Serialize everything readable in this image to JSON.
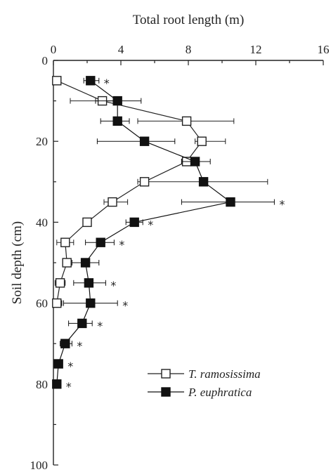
{
  "chart_data": {
    "type": "line",
    "title": "",
    "xlabel": "Total root length (m)",
    "ylabel": "Soil depth (cm)",
    "xlim": [
      0,
      16
    ],
    "ylim": [
      0,
      100
    ],
    "x_axis_position": "top",
    "y_axis_inverted": true,
    "x_ticks": [
      0,
      4,
      8,
      12,
      16
    ],
    "y_ticks": [
      0,
      20,
      40,
      60,
      80,
      100
    ],
    "grid": false,
    "legend_position": "bottom-right",
    "significance_marker": "*",
    "series": [
      {
        "name": "T. ramosissima",
        "marker": "open-square",
        "color": "#222222",
        "depth": [
          5,
          10,
          15,
          20,
          25,
          30,
          35,
          40,
          45,
          50,
          55,
          60
        ],
        "length": [
          0.2,
          2.9,
          7.9,
          8.8,
          7.9,
          5.4,
          3.5,
          2.0,
          0.7,
          0.8,
          0.4,
          0.2
        ],
        "err_low": [
          0.2,
          1.0,
          5.0,
          8.4,
          7.6,
          5.0,
          3.0,
          2.0,
          0.2,
          0.6,
          0.1,
          0.0
        ],
        "err_high": [
          0.2,
          3.7,
          10.7,
          10.2,
          8.2,
          12.7,
          4.4,
          2.0,
          1.2,
          1.0,
          0.7,
          0.5
        ]
      },
      {
        "name": "P. euphratica",
        "marker": "filled-square",
        "color": "#111111",
        "depth": [
          5,
          10,
          15,
          20,
          25,
          30,
          35,
          40,
          45,
          50,
          55,
          60,
          65,
          70,
          75,
          80
        ],
        "length": [
          2.2,
          3.8,
          3.8,
          5.4,
          8.4,
          8.9,
          10.5,
          4.8,
          2.8,
          1.9,
          2.1,
          2.2,
          1.7,
          0.7,
          0.3,
          0.2
        ],
        "err_low": [
          1.8,
          2.5,
          2.8,
          2.6,
          7.6,
          8.9,
          7.6,
          4.3,
          1.9,
          1.1,
          1.2,
          0.6,
          0.9,
          0.4,
          0.2,
          0.1
        ],
        "err_high": [
          2.7,
          5.2,
          4.5,
          7.2,
          9.3,
          8.9,
          13.1,
          5.3,
          3.6,
          2.7,
          3.1,
          3.8,
          2.3,
          1.1,
          0.4,
          0.3
        ],
        "significant": [
          true,
          false,
          false,
          false,
          false,
          false,
          true,
          true,
          true,
          false,
          true,
          true,
          true,
          true,
          true,
          true
        ]
      }
    ]
  }
}
